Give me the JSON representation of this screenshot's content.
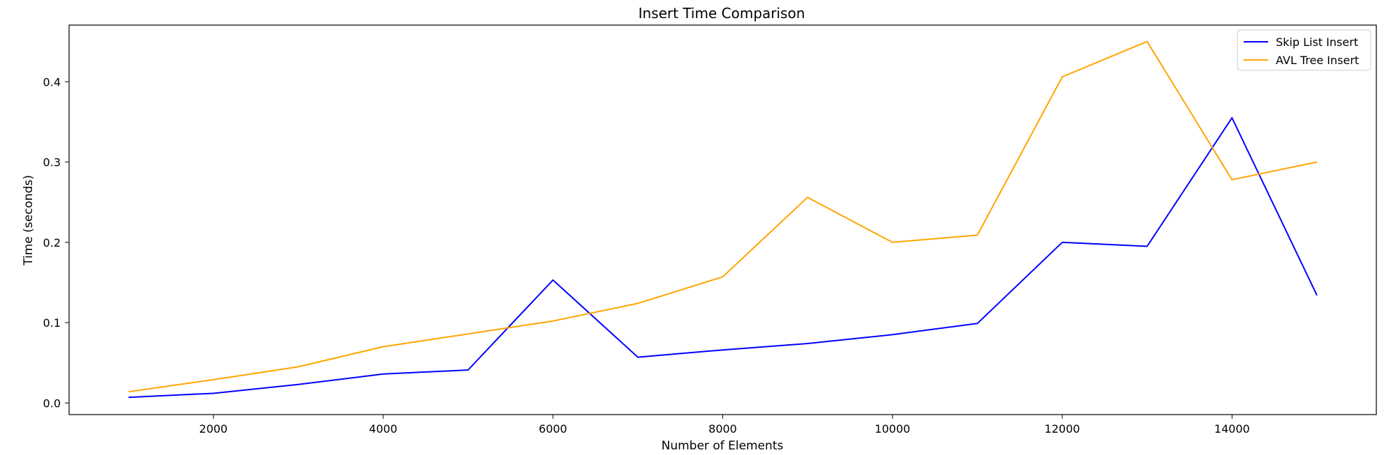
{
  "chart_data": {
    "type": "line",
    "title": "Insert Time Comparison",
    "xlabel": "Number of Elements",
    "ylabel": "Time (seconds)",
    "x": [
      1000,
      2000,
      3000,
      4000,
      5000,
      6000,
      7000,
      8000,
      9000,
      10000,
      11000,
      12000,
      13000,
      14000,
      15000
    ],
    "series": [
      {
        "name": "Skip List Insert",
        "color": "#0000ff",
        "values": [
          0.007,
          0.012,
          0.023,
          0.036,
          0.041,
          0.153,
          0.057,
          0.066,
          0.074,
          0.085,
          0.099,
          0.2,
          0.195,
          0.355,
          0.134
        ]
      },
      {
        "name": "AVL Tree Insert",
        "color": "#ffa500",
        "values": [
          0.014,
          0.029,
          0.045,
          0.07,
          0.086,
          0.102,
          0.124,
          0.157,
          0.256,
          0.2,
          0.209,
          0.406,
          0.45,
          0.278,
          0.3
        ]
      }
    ],
    "xlim": [
      300,
      15700
    ],
    "ylim": [
      -0.0145,
      0.4705
    ],
    "xticks": [
      2000,
      4000,
      6000,
      8000,
      10000,
      12000,
      14000
    ],
    "xtick_labels": [
      "2000",
      "4000",
      "6000",
      "8000",
      "10000",
      "12000",
      "14000"
    ],
    "yticks": [
      0.0,
      0.1,
      0.2,
      0.3,
      0.4
    ],
    "ytick_labels": [
      "0.0",
      "0.1",
      "0.2",
      "0.3",
      "0.4"
    ],
    "grid": false,
    "legend_position": "top-right"
  }
}
